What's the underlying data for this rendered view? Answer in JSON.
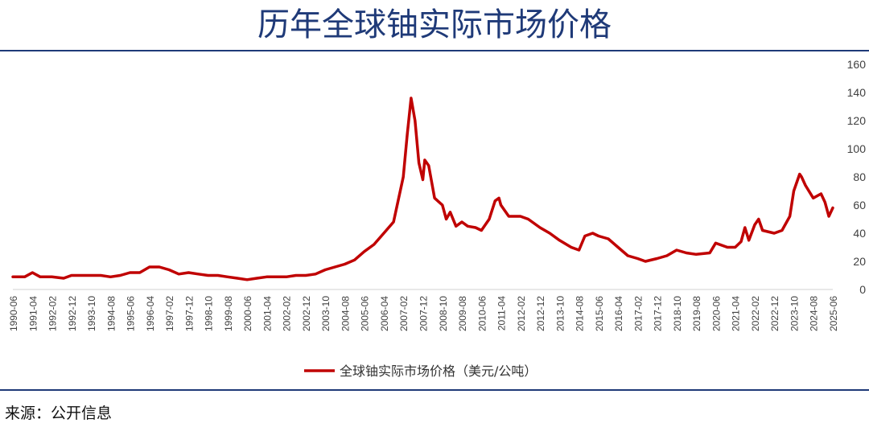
{
  "page": {
    "title": "历年全球铀实际市场价格",
    "source": "来源：公开信息"
  },
  "colors": {
    "title": "#1f3a78",
    "line": "#c00000",
    "axis_text": "#404040",
    "grid": "#d9d9d9"
  },
  "chart_data": {
    "type": "line",
    "title": "历年全球铀实际市场价格",
    "xlabel": "",
    "ylabel": "",
    "ylim": [
      0,
      160
    ],
    "yticks": [
      0,
      20,
      40,
      60,
      80,
      100,
      120,
      140,
      160
    ],
    "grid": false,
    "legend": "bottom",
    "x_tick_labels": [
      "1990-06",
      "1991-04",
      "1992-02",
      "1992-12",
      "1993-10",
      "1994-08",
      "1995-06",
      "1996-04",
      "1997-02",
      "1997-12",
      "1998-10",
      "1999-08",
      "2000-06",
      "2001-04",
      "2002-02",
      "2002-12",
      "2003-10",
      "2004-08",
      "2005-06",
      "2006-04",
      "2007-02",
      "2007-12",
      "2008-10",
      "2009-08",
      "2010-06",
      "2011-04",
      "2012-02",
      "2012-12",
      "2013-10",
      "2014-08",
      "2015-06",
      "2016-04",
      "2017-02",
      "2017-12",
      "2018-10",
      "2019-08",
      "2020-06",
      "2021-04",
      "2022-02",
      "2022-12",
      "2023-10",
      "2024-08",
      "2025-06"
    ],
    "series": [
      {
        "name": "全球铀实际市场价格（美元/公吨）",
        "color": "#c00000",
        "points": [
          [
            "1990-06",
            9
          ],
          [
            "1990-12",
            9
          ],
          [
            "1991-04",
            12
          ],
          [
            "1991-08",
            9
          ],
          [
            "1992-02",
            9
          ],
          [
            "1992-08",
            8
          ],
          [
            "1992-12",
            10
          ],
          [
            "1993-06",
            10
          ],
          [
            "1993-10",
            10
          ],
          [
            "1994-03",
            10
          ],
          [
            "1994-08",
            9
          ],
          [
            "1995-01",
            10
          ],
          [
            "1995-06",
            12
          ],
          [
            "1995-11",
            12
          ],
          [
            "1996-04",
            16
          ],
          [
            "1996-09",
            16
          ],
          [
            "1997-02",
            14
          ],
          [
            "1997-07",
            11
          ],
          [
            "1997-12",
            12
          ],
          [
            "1998-05",
            11
          ],
          [
            "1998-10",
            10
          ],
          [
            "1999-03",
            10
          ],
          [
            "1999-08",
            9
          ],
          [
            "2000-01",
            8
          ],
          [
            "2000-06",
            7
          ],
          [
            "2000-11",
            8
          ],
          [
            "2001-04",
            9
          ],
          [
            "2001-09",
            9
          ],
          [
            "2002-02",
            9
          ],
          [
            "2002-07",
            10
          ],
          [
            "2002-12",
            10
          ],
          [
            "2003-05",
            11
          ],
          [
            "2003-10",
            14
          ],
          [
            "2004-03",
            16
          ],
          [
            "2004-08",
            18
          ],
          [
            "2005-01",
            21
          ],
          [
            "2005-06",
            27
          ],
          [
            "2005-11",
            32
          ],
          [
            "2006-04",
            40
          ],
          [
            "2006-09",
            48
          ],
          [
            "2007-02",
            80
          ],
          [
            "2007-04",
            110
          ],
          [
            "2007-06",
            136
          ],
          [
            "2007-08",
            120
          ],
          [
            "2007-10",
            90
          ],
          [
            "2007-12",
            78
          ],
          [
            "2008-01",
            92
          ],
          [
            "2008-03",
            88
          ],
          [
            "2008-06",
            65
          ],
          [
            "2008-10",
            60
          ],
          [
            "2008-12",
            50
          ],
          [
            "2009-02",
            55
          ],
          [
            "2009-05",
            45
          ],
          [
            "2009-08",
            48
          ],
          [
            "2009-11",
            45
          ],
          [
            "2010-03",
            44
          ],
          [
            "2010-06",
            42
          ],
          [
            "2010-10",
            50
          ],
          [
            "2011-01",
            63
          ],
          [
            "2011-03",
            65
          ],
          [
            "2011-04",
            60
          ],
          [
            "2011-08",
            52
          ],
          [
            "2012-02",
            52
          ],
          [
            "2012-06",
            50
          ],
          [
            "2012-12",
            44
          ],
          [
            "2013-05",
            40
          ],
          [
            "2013-10",
            35
          ],
          [
            "2014-04",
            30
          ],
          [
            "2014-08",
            28
          ],
          [
            "2014-11",
            38
          ],
          [
            "2015-03",
            40
          ],
          [
            "2015-06",
            38
          ],
          [
            "2015-11",
            36
          ],
          [
            "2016-04",
            30
          ],
          [
            "2016-09",
            24
          ],
          [
            "2017-02",
            22
          ],
          [
            "2017-06",
            20
          ],
          [
            "2017-12",
            22
          ],
          [
            "2018-05",
            24
          ],
          [
            "2018-10",
            28
          ],
          [
            "2019-03",
            26
          ],
          [
            "2019-08",
            25
          ],
          [
            "2020-03",
            26
          ],
          [
            "2020-06",
            33
          ],
          [
            "2020-12",
            30
          ],
          [
            "2021-04",
            30
          ],
          [
            "2021-07",
            34
          ],
          [
            "2021-09",
            44
          ],
          [
            "2021-11",
            35
          ],
          [
            "2022-02",
            46
          ],
          [
            "2022-04",
            50
          ],
          [
            "2022-06",
            42
          ],
          [
            "2022-12",
            40
          ],
          [
            "2023-04",
            42
          ],
          [
            "2023-08",
            52
          ],
          [
            "2023-10",
            70
          ],
          [
            "2024-01",
            82
          ],
          [
            "2024-02",
            80
          ],
          [
            "2024-04",
            74
          ],
          [
            "2024-08",
            65
          ],
          [
            "2024-12",
            68
          ],
          [
            "2025-02",
            62
          ],
          [
            "2025-04",
            52
          ],
          [
            "2025-06",
            58
          ]
        ]
      }
    ]
  }
}
